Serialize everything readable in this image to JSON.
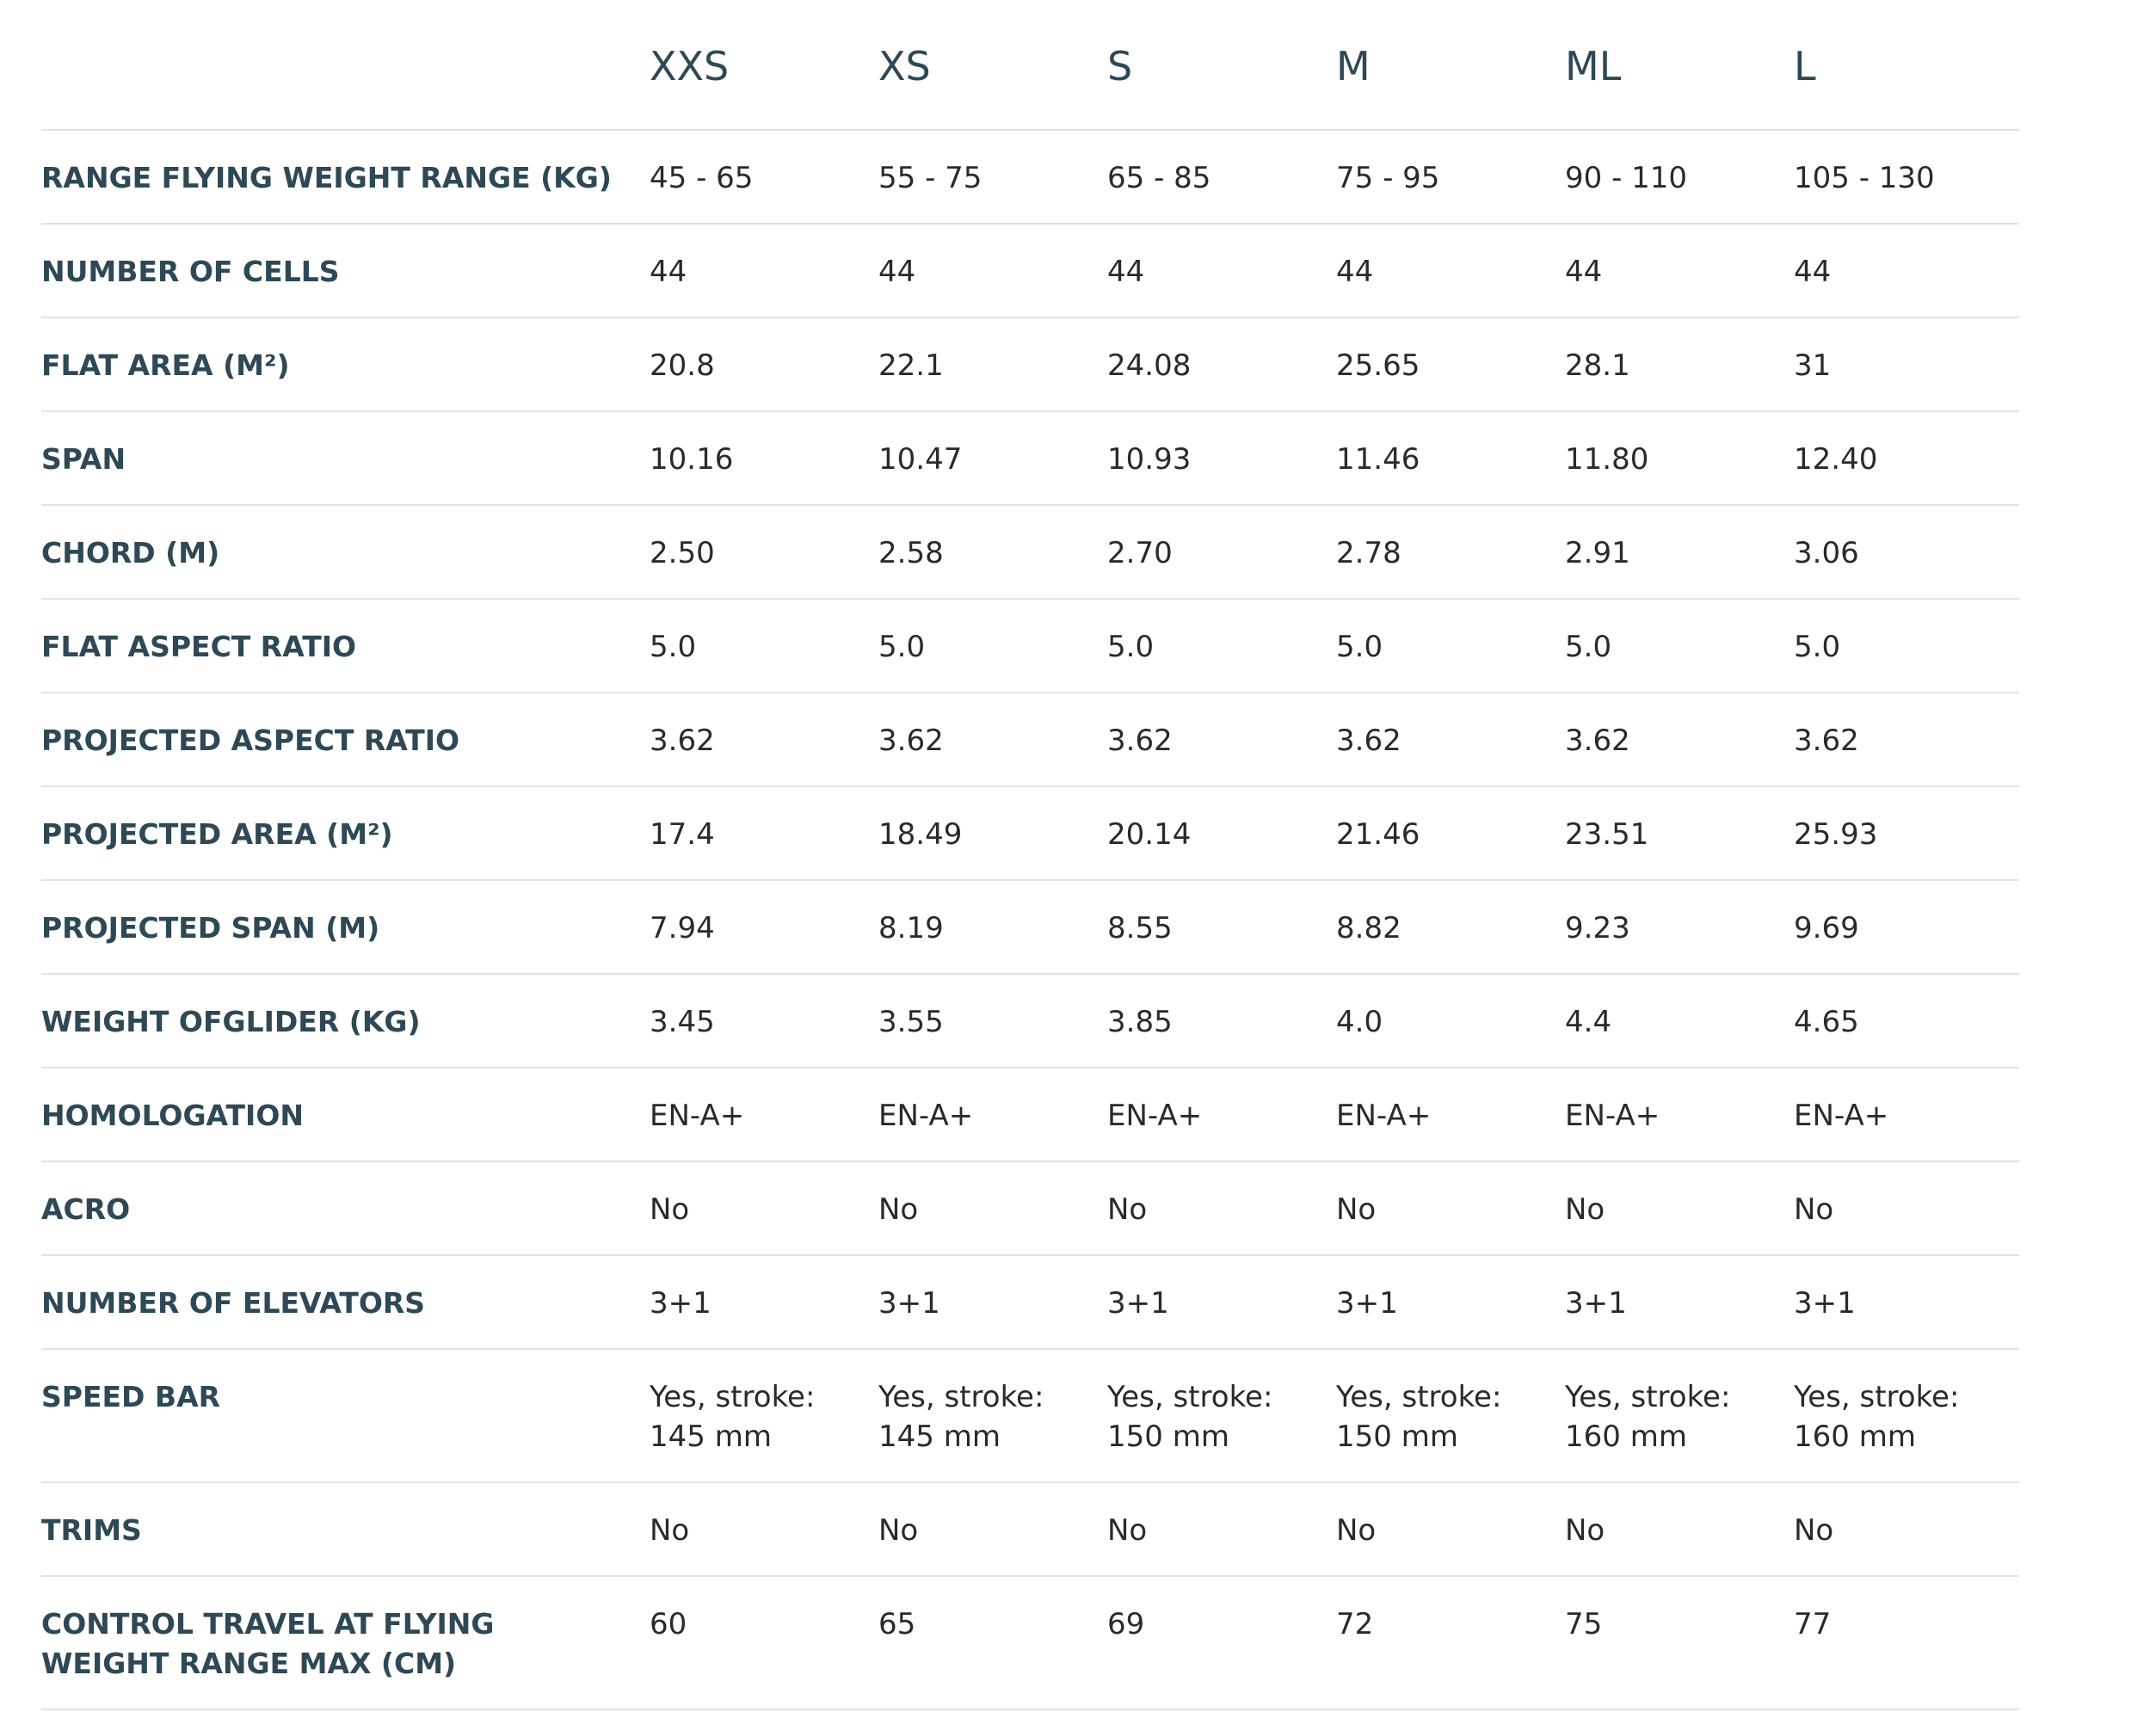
{
  "table": {
    "columns": [
      "XXS",
      "XS",
      "S",
      "M",
      "ML",
      "L"
    ],
    "rows": [
      {
        "label": "RANGE FLYING WEIGHT RANGE (KG)",
        "values": [
          "45 - 65",
          "55 - 75",
          "65 - 85",
          "75 - 95",
          "90 - 110",
          "105 - 130"
        ]
      },
      {
        "label": "NUMBER OF CELLS",
        "values": [
          "44",
          "44",
          "44",
          "44",
          "44",
          "44"
        ]
      },
      {
        "label": "FLAT AREA (M²)",
        "values": [
          "20.8",
          "22.1",
          "24.08",
          "25.65",
          "28.1",
          "31"
        ]
      },
      {
        "label": "SPAN",
        "values": [
          "10.16",
          "10.47",
          "10.93",
          "11.46",
          "11.80",
          "12.40"
        ]
      },
      {
        "label": "CHORD (M)",
        "values": [
          "2.50",
          "2.58",
          "2.70",
          "2.78",
          "2.91",
          "3.06"
        ]
      },
      {
        "label": "FLAT ASPECT RATIO",
        "values": [
          "5.0",
          "5.0",
          "5.0",
          "5.0",
          "5.0",
          "5.0"
        ]
      },
      {
        "label": "PROJECTED ASPECT RATIO",
        "values": [
          "3.62",
          "3.62",
          "3.62",
          "3.62",
          "3.62",
          "3.62"
        ]
      },
      {
        "label": "PROJECTED AREA (M²)",
        "values": [
          "17.4",
          "18.49",
          "20.14",
          "21.46",
          "23.51",
          "25.93"
        ]
      },
      {
        "label": "PROJECTED SPAN (M)",
        "values": [
          "7.94",
          "8.19",
          "8.55",
          "8.82",
          "9.23",
          "9.69"
        ]
      },
      {
        "label": "WEIGHT OFGLIDER (KG)",
        "values": [
          "3.45",
          "3.55",
          "3.85",
          "4.0",
          "4.4",
          "4.65"
        ]
      },
      {
        "label": "HOMOLOGATION",
        "values": [
          "EN-A+",
          "EN-A+",
          "EN-A+",
          "EN-A+",
          "EN-A+",
          "EN-A+"
        ]
      },
      {
        "label": "ACRO",
        "values": [
          "No",
          "No",
          "No",
          "No",
          "No",
          "No"
        ]
      },
      {
        "label": "NUMBER OF ELEVATORS",
        "values": [
          "3+1",
          "3+1",
          "3+1",
          "3+1",
          "3+1",
          "3+1"
        ]
      },
      {
        "label": "SPEED BAR",
        "values": [
          "Yes, stroke: 145 mm",
          "Yes, stroke: 145 mm",
          "Yes, stroke: 150 mm",
          "Yes, stroke: 150 mm",
          "Yes, stroke: 160 mm",
          "Yes, stroke: 160 mm"
        ]
      },
      {
        "label": "TRIMS",
        "values": [
          "No",
          "No",
          "No",
          "No",
          "No",
          "No"
        ]
      },
      {
        "label": "CONTROL TRAVEL AT FLYING WEIGHT RANGE MAX (CM)",
        "values": [
          "60",
          "65",
          "69",
          "72",
          "75",
          "77"
        ]
      }
    ]
  }
}
